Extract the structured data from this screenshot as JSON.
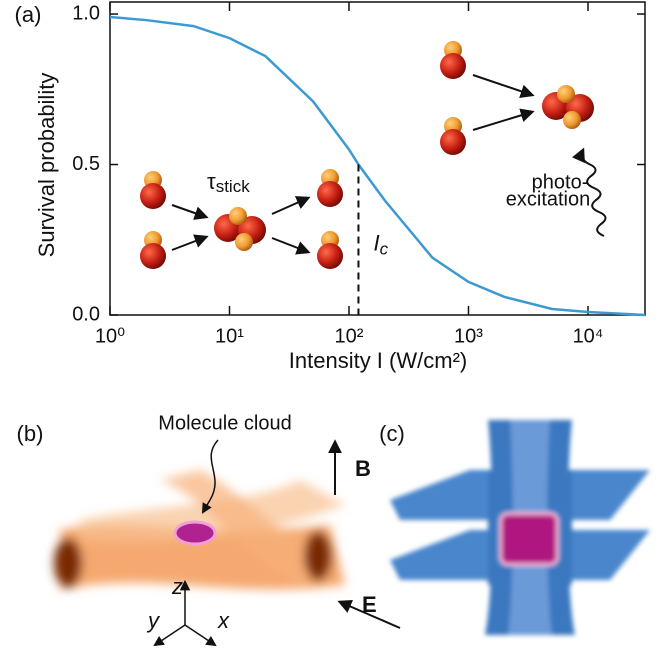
{
  "chart_data": {
    "type": "line",
    "panel_label": "(a)",
    "x_label": "Intensity I (W/cm²)",
    "y_label": "Survival probability",
    "x": [
      1,
      2,
      5,
      10,
      20,
      50,
      100,
      120,
      200,
      500,
      1000,
      2000,
      5000,
      10000,
      30000
    ],
    "series": [
      {
        "name": "Survival probability",
        "color": "#3d9ad1",
        "values": [
          0.99,
          0.98,
          0.96,
          0.92,
          0.86,
          0.71,
          0.55,
          0.5,
          0.38,
          0.19,
          0.11,
          0.06,
          0.02,
          0.01,
          0.0
        ]
      }
    ],
    "log_x": true,
    "xlim": [
      1,
      30000
    ],
    "xticks": [
      {
        "value": 1,
        "label": "10⁰"
      },
      {
        "value": 10,
        "label": "10¹"
      },
      {
        "value": 100,
        "label": "10²"
      },
      {
        "value": 1000,
        "label": "10³"
      },
      {
        "value": 10000,
        "label": "10⁴"
      }
    ],
    "ylim": [
      0,
      1.04
    ],
    "yticks": [
      {
        "value": 0,
        "label": "0.0"
      },
      {
        "value": 0.5,
        "label": "0.5"
      },
      {
        "value": 1,
        "label": "1.0"
      }
    ],
    "threshold": {
      "x": 120,
      "y": 0.5,
      "symbol": "I",
      "subscript": "c"
    },
    "tau_label": {
      "symbol": "τ",
      "subscript": "stick"
    },
    "photo_label": [
      "photo-",
      "excitation"
    ]
  },
  "panel_b": {
    "label": "(b)",
    "cloud_label": "Molecule cloud",
    "field_b": "B",
    "field_e": "E",
    "axis_z": "z",
    "axis_y": "y",
    "axis_x": "x"
  },
  "panel_c": {
    "label": "(c)"
  }
}
